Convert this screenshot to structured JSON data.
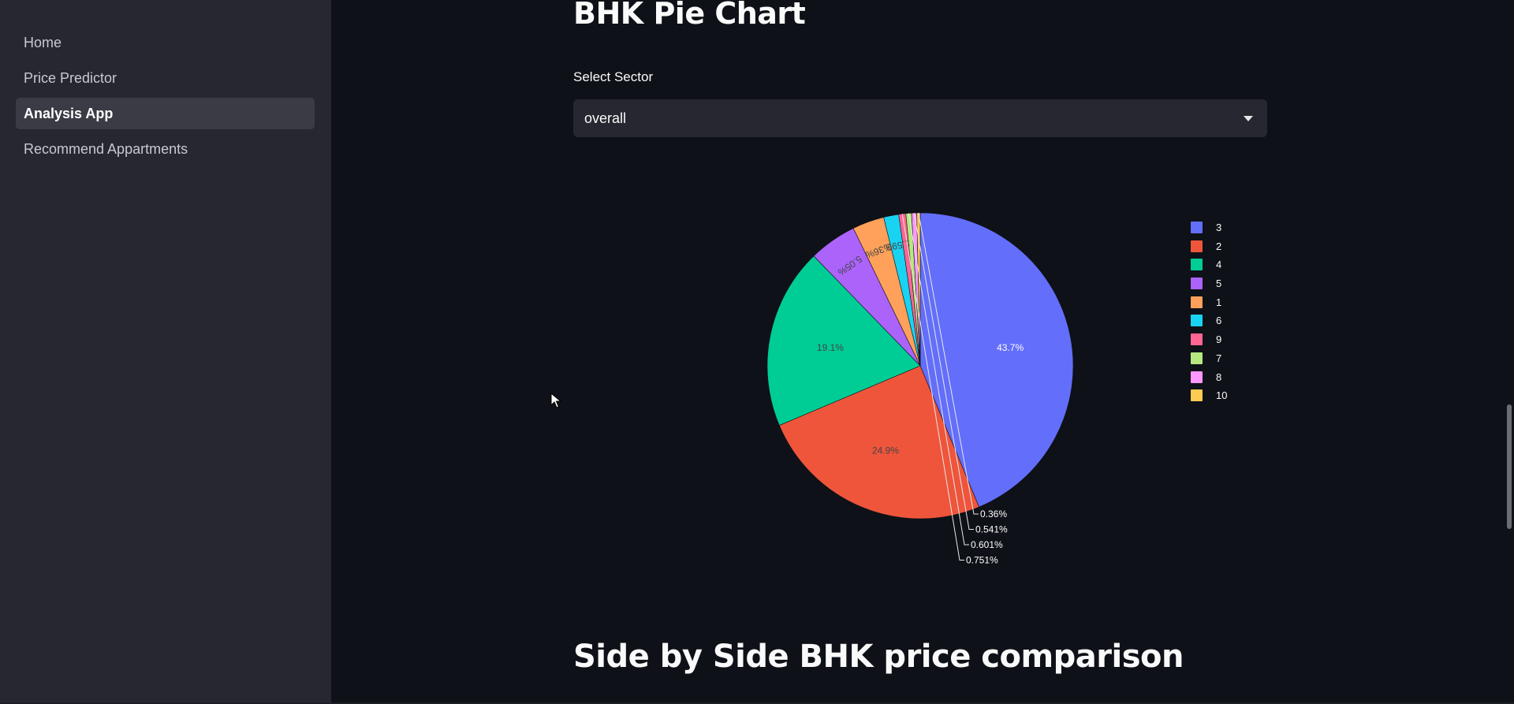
{
  "sidebar": {
    "items": [
      {
        "label": "Home"
      },
      {
        "label": "Price Predictor"
      },
      {
        "label": "Analysis App",
        "active": true
      },
      {
        "label": "Recommend Appartments"
      }
    ]
  },
  "main": {
    "title": "BHK Pie Chart",
    "select": {
      "label": "Select Sector",
      "value": "overall",
      "icon": "chevron-down-icon"
    },
    "subtitle": "Side by Side BHK price comparison"
  },
  "chart_data": {
    "type": "pie",
    "title": "",
    "legend_position": "right",
    "slices": [
      {
        "label": "3",
        "percent": 43.7,
        "text": "43.7%",
        "color": "#636efa"
      },
      {
        "label": "2",
        "percent": 24.9,
        "text": "24.9%",
        "color": "#ef553b"
      },
      {
        "label": "4",
        "percent": 19.1,
        "text": "19.1%",
        "color": "#00cc96"
      },
      {
        "label": "5",
        "percent": 5.05,
        "text": "5.05%",
        "color": "#ab63fa"
      },
      {
        "label": "1",
        "percent": 3.36,
        "text": "3.36%",
        "color": "#ffa15a"
      },
      {
        "label": "6",
        "percent": 1.59,
        "text": "1.59%",
        "color": "#19d3f3"
      },
      {
        "label": "9",
        "percent": 0.751,
        "text": "0.751%",
        "color": "#ff6692"
      },
      {
        "label": "7",
        "percent": 0.601,
        "text": "0.601%",
        "color": "#b6e880"
      },
      {
        "label": "8",
        "percent": 0.541,
        "text": "0.541%",
        "color": "#ff97ff"
      },
      {
        "label": "10",
        "percent": 0.36,
        "text": "0.36%",
        "color": "#fecb52"
      }
    ]
  },
  "theme": {
    "background": "#0e1117",
    "sidebar_background": "#262730",
    "text": "#fafafa"
  }
}
